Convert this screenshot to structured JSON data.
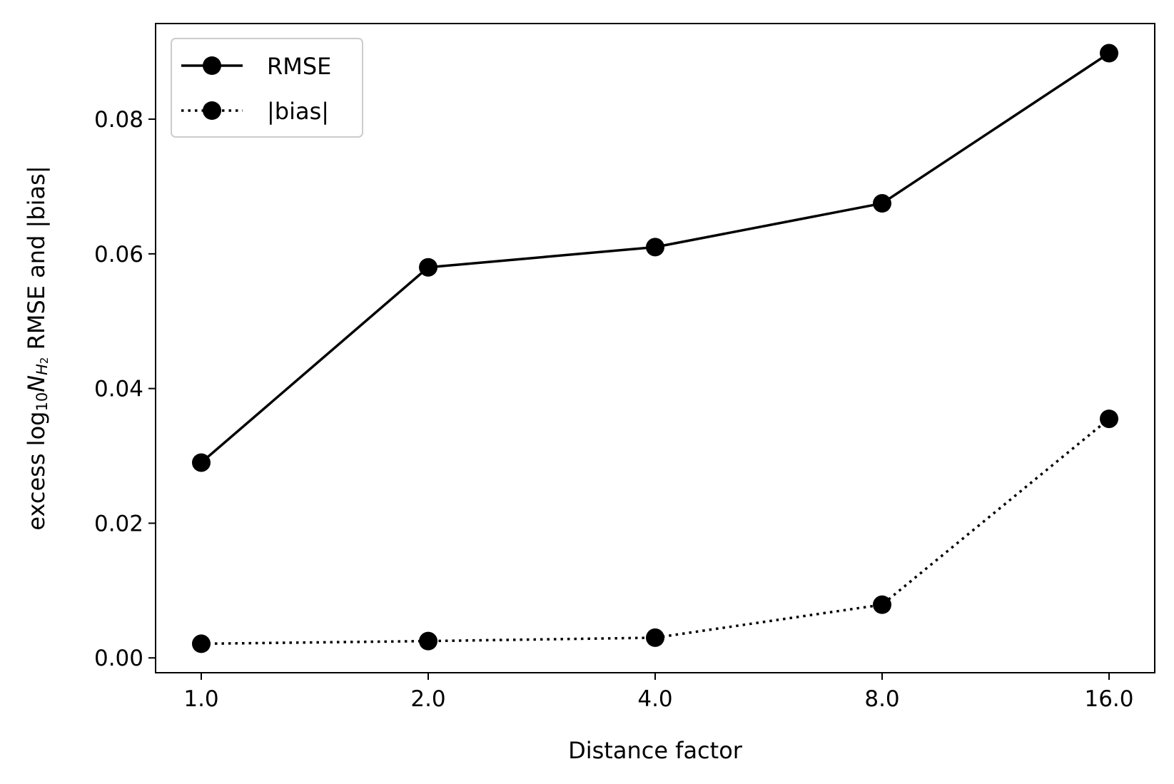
{
  "chart_data": {
    "type": "line",
    "title": "",
    "xlabel": "Distance factor",
    "ylabel": {
      "prefix": "excess log",
      "log_base": "10",
      "variable": "N",
      "subscript": "H",
      "sub_subscript": "2",
      "suffix": " RMSE and |bias|"
    },
    "categories": [
      "1.0",
      "2.0",
      "4.0",
      "8.0",
      "16.0"
    ],
    "x": [
      1.0,
      2.0,
      4.0,
      8.0,
      16.0
    ],
    "xscale": "log2",
    "ylim": [
      -0.0022,
      0.0942
    ],
    "yticks": [
      0.0,
      0.02,
      0.04,
      0.06,
      0.08
    ],
    "ytick_labels": [
      "0.00",
      "0.02",
      "0.04",
      "0.06",
      "0.08"
    ],
    "grid": false,
    "legend_position": "upper left",
    "series": [
      {
        "name": "RMSE",
        "linestyle": "solid",
        "marker": "circle",
        "color": "#000000",
        "values": [
          0.029,
          0.058,
          0.061,
          0.0675,
          0.0898
        ]
      },
      {
        "name": "|bias|",
        "linestyle": "dotted",
        "marker": "circle",
        "color": "#000000",
        "values": [
          0.0021,
          0.0025,
          0.003,
          0.0079,
          0.0355
        ]
      }
    ]
  }
}
